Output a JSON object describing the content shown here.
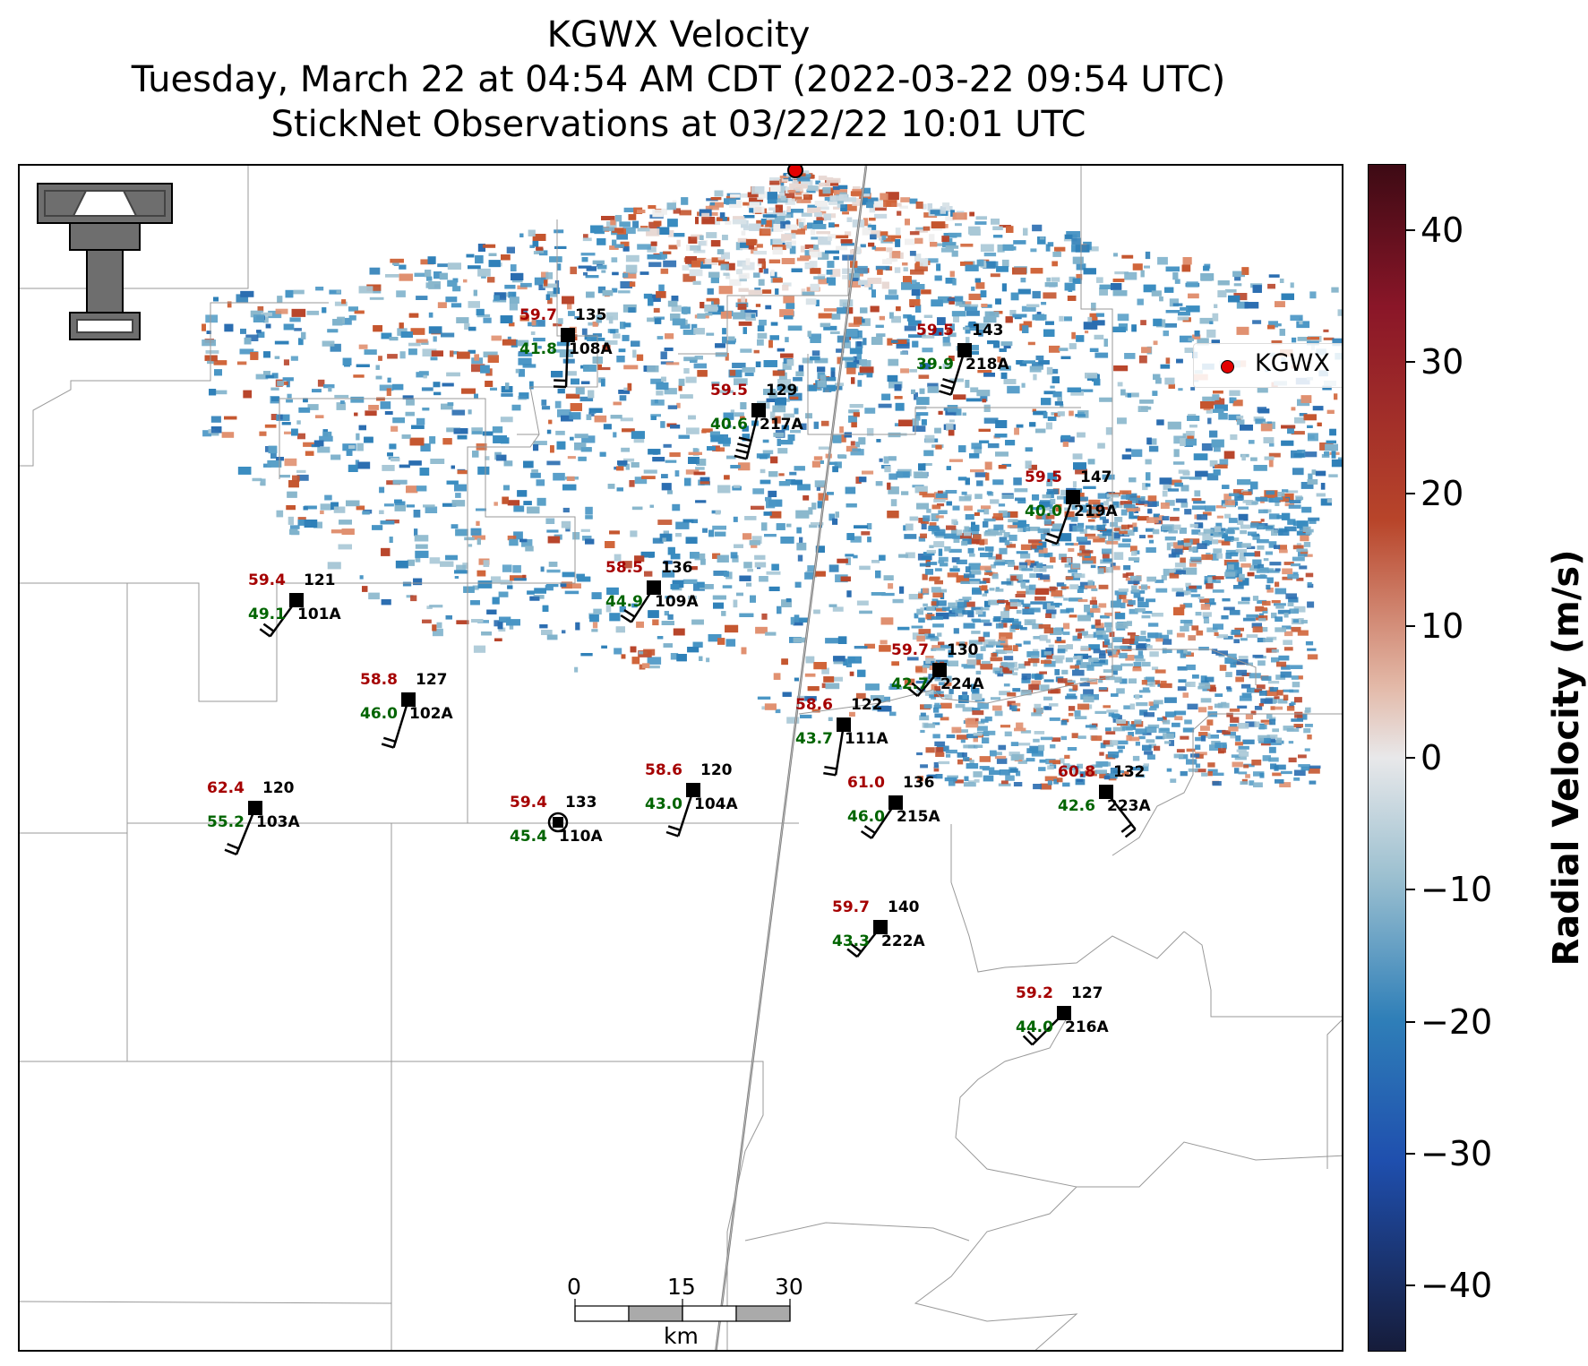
{
  "title": {
    "line1": "KGWX Velocity",
    "line2": "Tuesday, March 22 at 04:54 AM CDT (2022-03-22 09:54 UTC)",
    "line3": "StickNet Observations at 03/22/22 10:01 UTC"
  },
  "legend": {
    "label": "KGWX",
    "marker_color": "#e30000"
  },
  "colorbar": {
    "title": "Radial Velocity (m/s)",
    "range": [
      -45,
      45
    ],
    "ticks": [
      "40",
      "30",
      "20",
      "10",
      "0",
      "−10",
      "−20",
      "−30",
      "−40"
    ],
    "colors": {
      "max": "#3d0a14",
      "pos": "#b8452a",
      "zero": "#e8e8ea",
      "neg": "#2f7fb8",
      "min": "#161c3a"
    }
  },
  "logo": {
    "name": "texas-tech-double-t-logo"
  },
  "stations": [
    {
      "id": "108A",
      "temp": "59.7",
      "dew": "41.8",
      "pres": "135"
    },
    {
      "id": "218A",
      "temp": "59.5",
      "dew": "39.9",
      "pres": "143"
    },
    {
      "id": "217A",
      "temp": "59.5",
      "dew": "40.6",
      "pres": "129"
    },
    {
      "id": "219A",
      "temp": "59.5",
      "dew": "40.0",
      "pres": "147"
    },
    {
      "id": "101A",
      "temp": "59.4",
      "dew": "49.1",
      "pres": "121"
    },
    {
      "id": "109A",
      "temp": "58.5",
      "dew": "44.9",
      "pres": "136"
    },
    {
      "id": "224A",
      "temp": "59.7",
      "dew": "42.7",
      "pres": "130"
    },
    {
      "id": "102A",
      "temp": "58.8",
      "dew": "46.0",
      "pres": "127"
    },
    {
      "id": "111A",
      "temp": "58.6",
      "dew": "43.7",
      "pres": "122"
    },
    {
      "id": "104A",
      "temp": "58.6",
      "dew": "43.0",
      "pres": "120"
    },
    {
      "id": "215A",
      "temp": "61.0",
      "dew": "46.0",
      "pres": "136"
    },
    {
      "id": "223A",
      "temp": "60.8",
      "dew": "42.6",
      "pres": "132"
    },
    {
      "id": "103A",
      "temp": "62.4",
      "dew": "55.2",
      "pres": "120"
    },
    {
      "id": "110A",
      "temp": "59.4",
      "dew": "45.4",
      "pres": "133"
    },
    {
      "id": "222A",
      "temp": "59.7",
      "dew": "43.3",
      "pres": "140"
    },
    {
      "id": "216A",
      "temp": "59.2",
      "dew": "44.0",
      "pres": "127"
    }
  ],
  "scale_bar": {
    "ticks": [
      "0",
      "15",
      "30"
    ],
    "unit": "km"
  }
}
